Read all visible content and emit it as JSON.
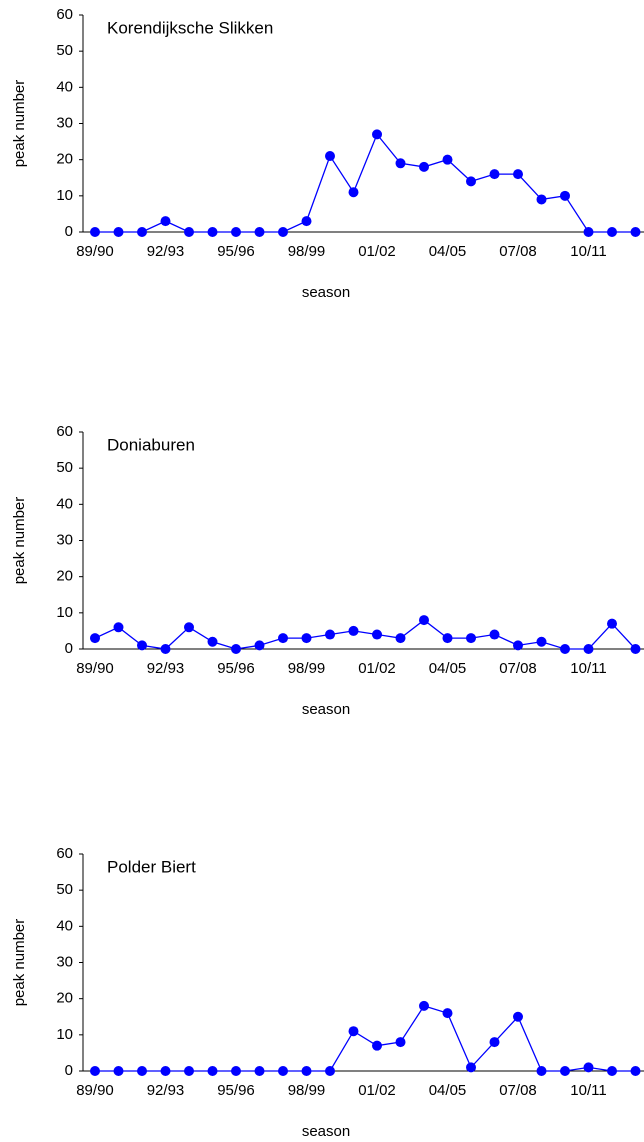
{
  "chart_data": [
    {
      "type": "line",
      "title": "Korendijksche Slikken",
      "x_label": "season",
      "y_label": "peak number",
      "categories": [
        "89/90",
        null,
        null,
        "92/93",
        null,
        null,
        "95/96",
        null,
        null,
        "98/99",
        null,
        null,
        "01/02",
        null,
        null,
        "04/05",
        null,
        null,
        "07/08",
        null,
        null,
        "10/11",
        null,
        null
      ],
      "series": [
        {
          "color": "#0000ff",
          "values": [
            0,
            0,
            0,
            3,
            0,
            0,
            0,
            0,
            0,
            3,
            21,
            11,
            27,
            19,
            18,
            20,
            14,
            16,
            16,
            9,
            10,
            0,
            0,
            0
          ]
        }
      ],
      "ylim": [
        0,
        60
      ],
      "yticks": [
        0,
        10,
        20,
        30,
        40,
        50,
        60
      ],
      "grid": false
    },
    {
      "type": "line",
      "title": "Doniaburen",
      "x_label": "season",
      "y_label": "peak number",
      "categories": [
        "89/90",
        null,
        null,
        "92/93",
        null,
        null,
        "95/96",
        null,
        null,
        "98/99",
        null,
        null,
        "01/02",
        null,
        null,
        "04/05",
        null,
        null,
        "07/08",
        null,
        null,
        "10/11",
        null,
        null
      ],
      "series": [
        {
          "color": "#0000ff",
          "values": [
            3,
            6,
            1,
            0,
            6,
            2,
            0,
            1,
            3,
            3,
            4,
            5,
            4,
            3,
            8,
            3,
            3,
            4,
            1,
            2,
            0,
            0,
            7,
            0
          ]
        }
      ],
      "ylim": [
        0,
        60
      ],
      "yticks": [
        0,
        10,
        20,
        30,
        40,
        50,
        60
      ],
      "grid": false
    },
    {
      "type": "line",
      "title": "Polder Biert",
      "x_label": "season",
      "y_label": "peak number",
      "categories": [
        "89/90",
        null,
        null,
        "92/93",
        null,
        null,
        "95/96",
        null,
        null,
        "98/99",
        null,
        null,
        "01/02",
        null,
        null,
        "04/05",
        null,
        null,
        "07/08",
        null,
        null,
        "10/11",
        null,
        null
      ],
      "series": [
        {
          "color": "#0000ff",
          "values": [
            0,
            0,
            0,
            0,
            0,
            0,
            0,
            0,
            0,
            0,
            0,
            11,
            7,
            8,
            18,
            16,
            1,
            8,
            15,
            0,
            0,
            1,
            0,
            0
          ]
        }
      ],
      "ylim": [
        0,
        60
      ],
      "yticks": [
        0,
        10,
        20,
        30,
        40,
        50,
        60
      ],
      "grid": false
    }
  ]
}
